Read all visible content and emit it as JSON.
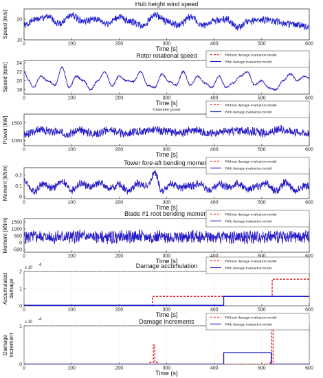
{
  "chart_data": [
    {
      "type": "line",
      "title": "Hub height wind speed",
      "xlabel": "Time [s]",
      "ylabel": "Speed [m/s]",
      "xlim": [
        0,
        600
      ],
      "ylim": [
        10,
        25
      ],
      "xticks": [
        0,
        100,
        200,
        300,
        400,
        500,
        600
      ],
      "yticks": [
        10,
        20
      ],
      "legend": [],
      "series": [
        {
          "color": "#1f1fcf",
          "style": "solid",
          "x": [
            0,
            25,
            50,
            75,
            100,
            125,
            150,
            175,
            200,
            225,
            250,
            275,
            300,
            325,
            350,
            375,
            400,
            425,
            450,
            475,
            500,
            525,
            550,
            575,
            600
          ],
          "y": [
            17,
            20,
            21,
            18,
            22,
            19,
            20,
            18,
            21,
            19,
            17,
            22,
            19,
            17,
            21,
            17,
            19,
            20,
            16,
            19,
            20,
            19,
            18,
            17,
            16
          ],
          "noise": 3.0,
          "seed": 1
        }
      ]
    },
    {
      "type": "line",
      "title": "Rotor rotational speed",
      "xlabel": "Time [s]",
      "ylabel": "Speed [rpm]",
      "xlim": [
        0,
        600
      ],
      "ylim": [
        17,
        24.5
      ],
      "xticks": [
        0,
        100,
        200,
        300,
        400,
        500,
        600
      ],
      "yticks": [
        18,
        20,
        22,
        24
      ],
      "legend": [
        "Without damage evaluation model",
        "With damage evaluation model"
      ],
      "series": [
        {
          "name": "Without damage evaluation model",
          "color": "#e02020",
          "style": "dashed",
          "x": [
            0,
            10,
            20,
            35,
            50,
            65,
            80,
            95,
            110,
            125,
            140,
            155,
            170,
            185,
            200,
            215,
            230,
            245,
            260,
            275,
            290,
            305,
            320,
            335,
            350,
            365,
            380,
            395,
            410,
            425,
            440,
            455,
            470,
            485,
            500,
            515,
            530,
            545,
            560,
            575,
            590,
            600
          ],
          "y": [
            22,
            20,
            18.5,
            21,
            20,
            19,
            23,
            18.5,
            21,
            20,
            18,
            20,
            22,
            18.8,
            21,
            20,
            19.8,
            22,
            19,
            18.5,
            21.5,
            19.8,
            19,
            22,
            19,
            21,
            19.5,
            18.5,
            21,
            18.5,
            19.5,
            21,
            22,
            19,
            20,
            18.4,
            18,
            20,
            21.5,
            20,
            21,
            20.5
          ],
          "noise": 0.3,
          "seed": 2
        },
        {
          "name": "With damage evaluation model",
          "color": "#1f1fcf",
          "style": "solid",
          "x": [
            0,
            10,
            20,
            35,
            50,
            65,
            80,
            95,
            110,
            125,
            140,
            155,
            170,
            185,
            200,
            215,
            230,
            245,
            260,
            275,
            290,
            305,
            320,
            335,
            350,
            365,
            380,
            395,
            410,
            425,
            440,
            455,
            470,
            485,
            500,
            515,
            530,
            545,
            560,
            575,
            590,
            600
          ],
          "y": [
            22,
            20,
            18.5,
            21,
            20,
            19,
            23,
            18.5,
            21,
            20,
            18,
            20,
            22,
            18.8,
            21,
            20,
            19.8,
            22,
            19,
            18.5,
            21.5,
            19.8,
            19,
            22,
            19,
            21,
            19.5,
            18.5,
            21,
            18.5,
            19.5,
            21,
            22,
            19,
            20,
            18.4,
            18,
            20,
            21.5,
            20,
            21,
            20.5
          ],
          "noise": 0.3,
          "seed": 2
        }
      ]
    },
    {
      "type": "line",
      "title": "Generator power",
      "xlabel": "Time [s]",
      "ylabel": "Power [kW]",
      "xlim": [
        0,
        600
      ],
      "ylim": [
        850,
        1750
      ],
      "xticks": [
        0,
        100,
        200,
        300,
        400,
        500,
        600
      ],
      "yticks": [
        1000,
        1500
      ],
      "legend": [
        "Without damage evaluation model",
        "With damage evaluation model"
      ],
      "series": [
        {
          "name": "Without damage evaluation model",
          "color": "#e02020",
          "style": "dashed",
          "x": [
            0,
            30,
            60,
            90,
            120,
            150,
            180,
            210,
            240,
            270,
            300,
            330,
            360,
            390,
            420,
            450,
            480,
            510,
            540,
            570,
            600
          ],
          "y": [
            1150,
            1300,
            1250,
            1200,
            1280,
            1200,
            1300,
            1200,
            1250,
            1300,
            1250,
            1220,
            1300,
            1200,
            1250,
            1280,
            1250,
            1200,
            1300,
            1250,
            1200
          ],
          "noise": 200,
          "seed": 3
        },
        {
          "name": "With damage evaluation model",
          "color": "#1f1fcf",
          "style": "solid",
          "x": [
            0,
            30,
            60,
            90,
            120,
            150,
            180,
            210,
            240,
            270,
            300,
            330,
            360,
            390,
            420,
            450,
            480,
            510,
            540,
            570,
            600
          ],
          "y": [
            1150,
            1300,
            1250,
            1200,
            1280,
            1200,
            1300,
            1200,
            1250,
            1300,
            1250,
            1220,
            1300,
            1200,
            1250,
            1280,
            1250,
            1200,
            1300,
            1250,
            1200
          ],
          "noise": 200,
          "seed": 3
        }
      ]
    },
    {
      "type": "line",
      "title": "Tower fore-aft bending moment",
      "xlabel": "Time [s]",
      "ylabel": "Moment [kNm]",
      "xlim": [
        0,
        600
      ],
      "ylim": [
        -0.02,
        0.27
      ],
      "xticks": [
        0,
        100,
        200,
        300,
        400,
        500,
        600
      ],
      "yticks": [
        0,
        0.1,
        0.2
      ],
      "legend": [
        "Without damage evaluation model",
        "With damage evaluation model"
      ],
      "series": [
        {
          "name": "Without damage evaluation model",
          "color": "#e02020",
          "style": "dashed",
          "x": [
            0,
            20,
            40,
            60,
            80,
            100,
            120,
            140,
            160,
            180,
            200,
            220,
            240,
            260,
            275,
            290,
            310,
            330,
            350,
            370,
            390,
            410,
            430,
            450,
            470,
            490,
            510,
            530,
            550,
            570,
            590,
            600
          ],
          "y": [
            0.15,
            0.05,
            0.12,
            0.08,
            0.14,
            0.06,
            0.12,
            0.09,
            0.13,
            0.07,
            0.11,
            0.05,
            0.12,
            0.1,
            0.22,
            0.05,
            0.12,
            0.08,
            0.1,
            0.12,
            0.06,
            0.11,
            0.09,
            0.12,
            0.07,
            0.1,
            0.12,
            0.05,
            0.13,
            0.06,
            0.1,
            0.09
          ],
          "noise": 0.06,
          "seed": 4
        },
        {
          "name": "With damage evaluation model",
          "color": "#1f1fcf",
          "style": "solid",
          "x": [
            0,
            20,
            40,
            60,
            80,
            100,
            120,
            140,
            160,
            180,
            200,
            220,
            240,
            260,
            275,
            290,
            310,
            330,
            350,
            370,
            390,
            410,
            430,
            450,
            470,
            490,
            510,
            530,
            550,
            570,
            590,
            600
          ],
          "y": [
            0.15,
            0.05,
            0.12,
            0.08,
            0.14,
            0.06,
            0.12,
            0.09,
            0.13,
            0.07,
            0.11,
            0.05,
            0.12,
            0.1,
            0.22,
            0.05,
            0.12,
            0.08,
            0.1,
            0.12,
            0.06,
            0.11,
            0.09,
            0.12,
            0.07,
            0.1,
            0.12,
            0.05,
            0.13,
            0.06,
            0.1,
            0.09
          ],
          "noise": 0.06,
          "seed": 4
        }
      ]
    },
    {
      "type": "line",
      "title": "Blade #1 root bending moment",
      "xlabel": "Time [s]",
      "ylabel": "Moment [kNm]",
      "xlim": [
        0,
        600
      ],
      "ylim": [
        -700,
        1750
      ],
      "xticks": [
        0,
        100,
        200,
        300,
        400,
        500,
        600
      ],
      "yticks": [
        -500,
        0,
        500,
        1000,
        1500
      ],
      "legend": [
        "Without damage evaluation model",
        "With damage evaluation model"
      ],
      "series": [
        {
          "name": "Without damage evaluation model",
          "color": "#e02020",
          "style": "dashed",
          "x": [
            0,
            30,
            60,
            90,
            120,
            150,
            180,
            210,
            240,
            270,
            300,
            330,
            360,
            390,
            420,
            450,
            480,
            510,
            540,
            570,
            600
          ],
          "y": [
            400,
            450,
            400,
            420,
            450,
            400,
            380,
            420,
            450,
            400,
            420,
            380,
            450,
            400,
            420,
            380,
            400,
            450,
            400,
            420,
            400
          ],
          "noise": 800,
          "seed": 5
        },
        {
          "name": "With damage evaluation model",
          "color": "#1f1fcf",
          "style": "solid",
          "x": [
            0,
            30,
            60,
            90,
            120,
            150,
            180,
            210,
            240,
            270,
            300,
            330,
            360,
            390,
            420,
            450,
            480,
            510,
            540,
            570,
            600
          ],
          "y": [
            400,
            450,
            400,
            420,
            450,
            400,
            380,
            420,
            450,
            400,
            420,
            380,
            450,
            400,
            420,
            380,
            400,
            450,
            400,
            420,
            400
          ],
          "noise": 800,
          "seed": 5
        }
      ]
    },
    {
      "type": "line",
      "title": "Damage accumulation",
      "xlabel": "Time [s]",
      "ylabel": "Accumulated damage",
      "y_exponent": "x 10",
      "y_exponent_power": "-4",
      "xlim": [
        0,
        600
      ],
      "ylim": [
        0,
        2
      ],
      "xticks": [
        0,
        100,
        200,
        300,
        400,
        500,
        600
      ],
      "yticks": [
        0,
        1,
        2
      ],
      "grid": true,
      "legend": [
        "Without damage evaluation model",
        "With damage evaluation model"
      ],
      "series": [
        {
          "name": "Without damage evaluation model",
          "color": "#e02020",
          "style": "dashed",
          "step": true,
          "x": [
            0,
            270,
            270,
            522,
            522,
            600
          ],
          "y": [
            0.03,
            0.03,
            0.55,
            0.55,
            1.55,
            1.55
          ]
        },
        {
          "name": "With damage evaluation model",
          "color": "#1f1fcf",
          "style": "solid",
          "step": true,
          "x": [
            0,
            420,
            420,
            600
          ],
          "y": [
            0.03,
            0.03,
            0.55,
            0.55
          ]
        }
      ]
    },
    {
      "type": "line",
      "title": "Damage increments",
      "xlabel": "Time (s)",
      "ylabel": "Damage increment",
      "y_exponent": "x 10",
      "y_exponent_power": "-4",
      "xlim": [
        0,
        600
      ],
      "ylim": [
        0,
        1
      ],
      "xticks": [
        0,
        100,
        200,
        300,
        400,
        500,
        600
      ],
      "yticks": [
        0,
        1
      ],
      "grid": true,
      "legend": [
        "Without damage evaluation model",
        "With damage evaluation model"
      ],
      "series": [
        {
          "name": "Without damage evaluation model",
          "color": "#e02020",
          "style": "dashed",
          "step": true,
          "x": [
            0,
            265,
            265,
            272,
            272,
            275,
            275,
            280,
            280,
            518,
            518,
            521,
            521,
            524,
            524,
            600
          ],
          "y": [
            0,
            0,
            0.05,
            0.05,
            0.5,
            0.5,
            0.05,
            0.05,
            0,
            0,
            0.05,
            0.05,
            1.0,
            1.0,
            0,
            0
          ]
        },
        {
          "name": "With damage evaluation model",
          "color": "#1f1fcf",
          "style": "solid",
          "step": true,
          "x": [
            0,
            420,
            420,
            520,
            520,
            600
          ],
          "y": [
            0,
            0,
            0.3,
            0.3,
            0,
            0
          ]
        }
      ]
    }
  ]
}
